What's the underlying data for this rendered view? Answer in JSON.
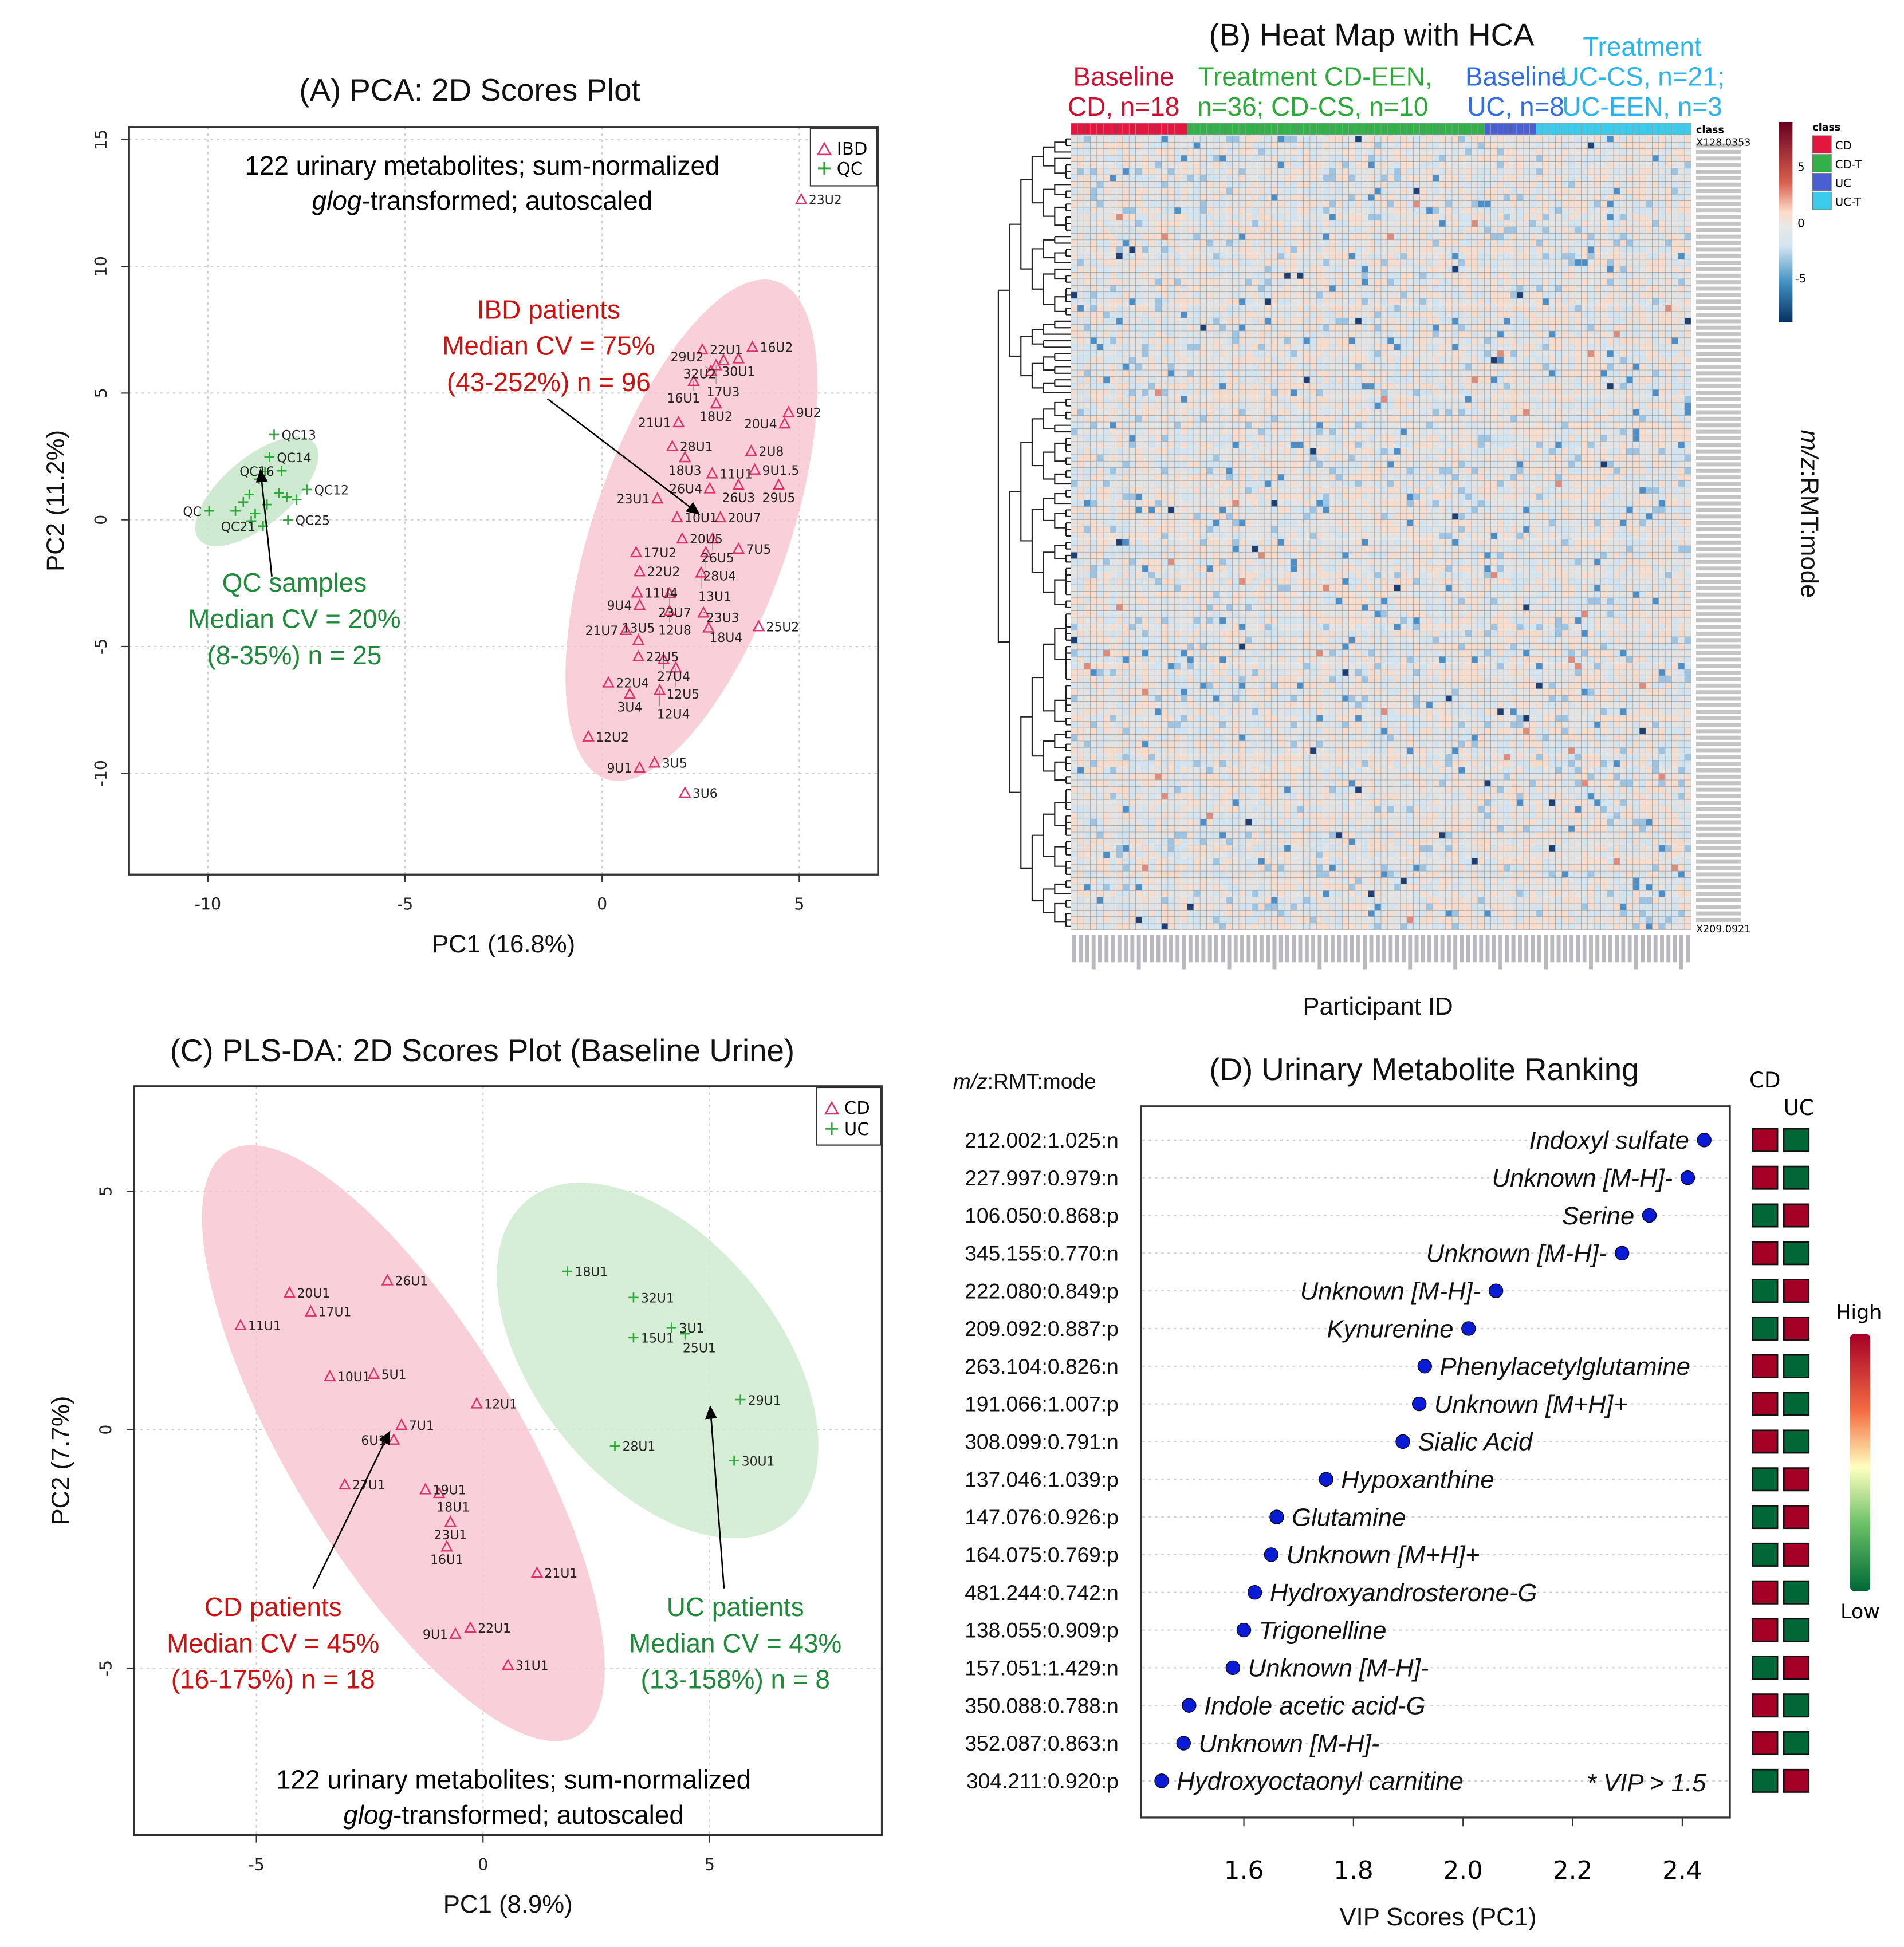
{
  "colors": {
    "ibd": "#e0306a",
    "qc": "#2eaa3a",
    "cd_text": "#cc1111",
    "uc_text": "#1f8a3a",
    "ibd_ellipse": "#f5b8c6",
    "qc_ellipse": "#bfe3c2",
    "high": "#a50026",
    "low": "#006837",
    "vip_dot": "#0a1bd6"
  },
  "panelA": {
    "title": "(A)  PCA: 2D Scores Plot",
    "note_line1": "122 urinary metabolites; sum-normalized",
    "note_line2_italic": "glog",
    "note_line2_rest": "-transformed; autoscaled",
    "ibd_ann": [
      "IBD patients",
      "Median CV = 75%",
      "(43-252%) n = 96"
    ],
    "qc_ann": [
      "QC samples",
      "Median CV = 20%",
      "(8-35%) n = 25"
    ],
    "legend": [
      "IBD",
      "QC"
    ]
  },
  "panelB": {
    "title": "(B)  Heat Map with HCA",
    "groups": [
      {
        "line1": "Baseline",
        "line2": "CD, n=18",
        "color": "#cc1133"
      },
      {
        "line1": "Treatment  CD-EEN,",
        "line2": "n=36; CD-CS, n=10",
        "color": "#2eaa3a"
      },
      {
        "line1": "Baseline",
        "line2": "UC, n=8",
        "color": "#2f6fe0"
      },
      {
        "line1": "Treatment",
        "line2": "UC-CS, n=21;",
        "line3": "UC-EEN, n=3",
        "color": "#2cb5ea"
      }
    ],
    "xlabel": "Participant ID",
    "ylabel": "m/z:RMT:mode",
    "first_row_label": "X128.0353",
    "last_row_label": "X209.0921",
    "class_title": "class",
    "classes": [
      {
        "name": "CD",
        "color": "#e3163f",
        "n": 18
      },
      {
        "name": "CD-T",
        "color": "#33b04a",
        "n": 46
      },
      {
        "name": "UC",
        "color": "#4a5fd0",
        "n": 8
      },
      {
        "name": "UC-T",
        "color": "#3ccbea",
        "n": 24
      }
    ],
    "colorbar_ticks": [
      "5",
      "0",
      "-5"
    ]
  },
  "panelC": {
    "title": "(C)  PLS-DA: 2D Scores Plot (Baseline Urine)",
    "note_line1": "122 urinary metabolites; sum-normalized",
    "note_line2_italic": "glog",
    "note_line2_rest": "-transformed; autoscaled",
    "cd_ann": [
      "CD patients",
      "Median CV = 45%",
      "(16-175%) n = 18"
    ],
    "uc_ann": [
      "UC patients",
      "Median CV = 43%",
      "(13-158%) n = 8"
    ],
    "legend": [
      "CD",
      "UC"
    ]
  },
  "panelD": {
    "title": "(D)  Urinary Metabolite Ranking",
    "mz_header": "m/z:RMT:mode",
    "footnote": "* VIP > 1.5",
    "col_headers": [
      "CD",
      "UC"
    ],
    "scale_high": "High",
    "scale_low": "Low"
  },
  "chart_data": [
    {
      "type": "scatter",
      "title": "(A)  PCA: 2D Scores Plot",
      "xlabel": "PC1 (16.8%)",
      "ylabel": "PC2 (11.2%)",
      "xlim": [
        -12,
        7
      ],
      "ylim": [
        -14,
        15.5
      ],
      "xticks": [
        -10,
        -5,
        0,
        5
      ],
      "yticks": [
        -10,
        -5,
        0,
        5,
        10,
        15
      ],
      "grid": true,
      "legend": "top-right",
      "series": [
        {
          "name": "IBD",
          "marker": "triangle",
          "points": [
            {
              "label": "23U2",
              "x": 5.05,
              "y": 12.65
            },
            {
              "label": "22U1",
              "x": 2.54,
              "y": 6.72
            },
            {
              "label": "16U2",
              "x": 3.81,
              "y": 6.82
            },
            {
              "label": "30U1",
              "x": 3.46,
              "y": 6.37
            },
            {
              "label": "32U2",
              "x": 3.08,
              "y": 6.3
            },
            {
              "label": "17U3",
              "x": 2.89,
              "y": 6.1
            },
            {
              "label": "29U2",
              "x": 2.76,
              "y": 5.88
            },
            {
              "label": "16U1",
              "x": 2.32,
              "y": 5.48
            },
            {
              "label": "18U2",
              "x": 2.89,
              "y": 4.59
            },
            {
              "label": "9U2",
              "x": 4.73,
              "y": 4.25
            },
            {
              "label": "20U4",
              "x": 4.63,
              "y": 3.8
            },
            {
              "label": "21U1",
              "x": 1.94,
              "y": 3.85
            },
            {
              "label": "28U1",
              "x": 1.78,
              "y": 2.91
            },
            {
              "label": "18U3",
              "x": 2.1,
              "y": 2.47
            },
            {
              "label": "2U8",
              "x": 3.78,
              "y": 2.72
            },
            {
              "label": "11U1",
              "x": 2.79,
              "y": 1.83
            },
            {
              "label": "9U1.5",
              "x": 3.87,
              "y": 1.98
            },
            {
              "label": "26U3",
              "x": 3.46,
              "y": 1.38
            },
            {
              "label": "29U5",
              "x": 4.48,
              "y": 1.38
            },
            {
              "label": "26U4",
              "x": 2.73,
              "y": 1.24
            },
            {
              "label": "23U1",
              "x": 1.4,
              "y": 0.84
            },
            {
              "label": "10U1",
              "x": 1.9,
              "y": 0.1
            },
            {
              "label": "20U7",
              "x": 3.0,
              "y": 0.1
            },
            {
              "label": "20U5",
              "x": 2.03,
              "y": -0.74
            },
            {
              "label": "26U5",
              "x": 2.8,
              "y": -0.74
            },
            {
              "label": "7U5",
              "x": 3.46,
              "y": -1.14
            },
            {
              "label": "28U4",
              "x": 2.63,
              "y": -1.28
            },
            {
              "label": "17U2",
              "x": 0.86,
              "y": -1.28
            },
            {
              "label": "22U2",
              "x": 0.95,
              "y": -2.03
            },
            {
              "label": "13U1",
              "x": 2.51,
              "y": -2.08
            },
            {
              "label": "11U4",
              "x": 0.89,
              "y": -2.87
            },
            {
              "label": "23U7",
              "x": 1.71,
              "y": -2.9
            },
            {
              "label": "9U4",
              "x": 0.95,
              "y": -3.36
            },
            {
              "label": "12U8",
              "x": 1.71,
              "y": -3.6
            },
            {
              "label": "23U3",
              "x": 2.57,
              "y": -3.66
            },
            {
              "label": "18U4",
              "x": 2.7,
              "y": -4.25
            },
            {
              "label": "25U2",
              "x": 3.97,
              "y": -4.2
            },
            {
              "label": "21U7",
              "x": 0.6,
              "y": -4.35
            },
            {
              "label": "13U5",
              "x": 0.92,
              "y": -4.74
            },
            {
              "label": "22U5",
              "x": 0.92,
              "y": -5.39
            },
            {
              "label": "27U4",
              "x": 1.56,
              "y": -5.5
            },
            {
              "label": "12U5",
              "x": 1.87,
              "y": -5.83
            },
            {
              "label": "22U4",
              "x": 0.16,
              "y": -6.42
            },
            {
              "label": "3U4",
              "x": 0.7,
              "y": -6.87
            },
            {
              "label": "12U4",
              "x": 1.46,
              "y": -6.72
            },
            {
              "label": "12U2",
              "x": -0.35,
              "y": -8.55
            },
            {
              "label": "3U5",
              "x": 1.33,
              "y": -9.58
            },
            {
              "label": "9U1",
              "x": 0.95,
              "y": -9.78
            },
            {
              "label": "3U6",
              "x": 2.1,
              "y": -10.77
            }
          ]
        },
        {
          "name": "QC",
          "marker": "plus",
          "points": [
            {
              "label": "QC13",
              "x": -8.32,
              "y": 3.36
            },
            {
              "label": "QC14",
              "x": -8.44,
              "y": 2.47
            },
            {
              "label": "QC16",
              "x": -8.13,
              "y": 1.93
            },
            {
              "label": "QC12",
              "x": -7.49,
              "y": 1.19
            },
            {
              "label": "QC25",
              "x": -7.97,
              "y": 0.0
            },
            {
              "label": "QC21",
              "x": -8.6,
              "y": -0.25
            },
            {
              "label": "QC",
              "x": -9.97,
              "y": 0.35
            },
            {
              "label": "",
              "x": -9.1,
              "y": 0.7
            },
            {
              "label": "",
              "x": -8.95,
              "y": 1.0
            },
            {
              "label": "",
              "x": -8.8,
              "y": 0.25
            },
            {
              "label": "",
              "x": -8.5,
              "y": 0.6
            },
            {
              "label": "",
              "x": -9.3,
              "y": 0.35
            },
            {
              "label": "",
              "x": -8.7,
              "y": 1.6
            },
            {
              "label": "",
              "x": -8.55,
              "y": 1.9
            },
            {
              "label": "",
              "x": -8.0,
              "y": 0.9
            },
            {
              "label": "",
              "x": -7.75,
              "y": 0.8
            },
            {
              "label": "",
              "x": -8.2,
              "y": 1.05
            },
            {
              "label": "",
              "x": -8.9,
              "y": -0.05
            }
          ]
        }
      ]
    },
    {
      "type": "heatmap",
      "title": "(B)  Heat Map with HCA",
      "xlabel": "Participant ID",
      "ylabel": "m/z:RMT:mode",
      "n_rows": 122,
      "n_cols": 96,
      "color_range": [
        -9,
        9
      ]
    },
    {
      "type": "scatter",
      "title": "(C)  PLS-DA: 2D Scores Plot (Baseline Urine)",
      "xlabel": "PC1 (8.9%)",
      "ylabel": "PC2 (7.7%)",
      "xlim": [
        -7.7,
        8.8
      ],
      "ylim": [
        -8.5,
        7.2
      ],
      "xticks": [
        -5,
        0,
        5
      ],
      "yticks": [
        -5,
        0,
        5
      ],
      "grid": true,
      "legend": "top-right",
      "series": [
        {
          "name": "CD",
          "marker": "triangle",
          "points": [
            {
              "label": "26U1",
              "x": -2.11,
              "y": 3.13
            },
            {
              "label": "20U1",
              "x": -4.27,
              "y": 2.87
            },
            {
              "label": "17U1",
              "x": -3.8,
              "y": 2.48
            },
            {
              "label": "11U1",
              "x": -5.35,
              "y": 2.19
            },
            {
              "label": "10U1",
              "x": -3.38,
              "y": 1.12
            },
            {
              "label": "5U1",
              "x": -2.41,
              "y": 1.17
            },
            {
              "label": "12U1",
              "x": -0.14,
              "y": 0.55
            },
            {
              "label": "7U1",
              "x": -1.8,
              "y": 0.1
            },
            {
              "label": "6U1",
              "x": -1.97,
              "y": -0.21
            },
            {
              "label": "27U1",
              "x": -3.05,
              "y": -1.15
            },
            {
              "label": "19U1",
              "x": -1.27,
              "y": -1.25
            },
            {
              "label": "18U1",
              "x": -0.97,
              "y": -1.33
            },
            {
              "label": "23U1",
              "x": -0.72,
              "y": -1.93
            },
            {
              "label": "16U1",
              "x": -0.8,
              "y": -2.45
            },
            {
              "label": "21U1",
              "x": 1.19,
              "y": -3.0
            },
            {
              "label": "22U1",
              "x": -0.28,
              "y": -4.15
            },
            {
              "label": "9U1",
              "x": -0.61,
              "y": -4.28
            },
            {
              "label": "31U1",
              "x": 0.55,
              "y": -4.93
            }
          ]
        },
        {
          "name": "UC",
          "marker": "plus",
          "points": [
            {
              "label": "18U1",
              "x": 1.86,
              "y": 3.32
            },
            {
              "label": "32U1",
              "x": 3.32,
              "y": 2.77
            },
            {
              "label": "3U1",
              "x": 4.16,
              "y": 2.14
            },
            {
              "label": "15U1",
              "x": 3.32,
              "y": 1.93
            },
            {
              "label": "25U1",
              "x": 4.46,
              "y": 2.01
            },
            {
              "label": "29U1",
              "x": 5.68,
              "y": 0.63
            },
            {
              "label": "28U1",
              "x": 2.91,
              "y": -0.34
            },
            {
              "label": "30U1",
              "x": 5.54,
              "y": -0.65
            }
          ]
        }
      ]
    },
    {
      "type": "dot",
      "title": "(D)  Urinary Metabolite Ranking",
      "xlabel": "VIP Scores (PC1)",
      "xlim": [
        1.42,
        2.48
      ],
      "xticks": [
        1.6,
        1.8,
        2.0,
        2.2,
        2.4
      ],
      "rows": [
        {
          "mz": "212.002:1.025:n",
          "name": "Indoxyl sulfate",
          "vip": 2.44,
          "cd": "high",
          "uc": "low"
        },
        {
          "mz": "227.997:0.979:n",
          "name": "Unknown [M-H]-",
          "vip": 2.41,
          "cd": "high",
          "uc": "low"
        },
        {
          "mz": "106.050:0.868:p",
          "name": "Serine",
          "vip": 2.34,
          "cd": "low",
          "uc": "high"
        },
        {
          "mz": "345.155:0.770:n",
          "name": "Unknown [M-H]-",
          "vip": 2.29,
          "cd": "high",
          "uc": "low"
        },
        {
          "mz": "222.080:0.849:p",
          "name": "Unknown [M-H]-",
          "vip": 2.06,
          "cd": "low",
          "uc": "high"
        },
        {
          "mz": "209.092:0.887:p",
          "name": "Kynurenine",
          "vip": 2.01,
          "cd": "low",
          "uc": "high"
        },
        {
          "mz": "263.104:0.826:n",
          "name": "Phenylacetylglutamine",
          "vip": 1.93,
          "cd": "high",
          "uc": "low"
        },
        {
          "mz": "191.066:1.007:p",
          "name": "Unknown [M+H]+",
          "vip": 1.92,
          "cd": "high",
          "uc": "low"
        },
        {
          "mz": "308.099:0.791:n",
          "name": "Sialic Acid",
          "vip": 1.89,
          "cd": "high",
          "uc": "low"
        },
        {
          "mz": "137.046:1.039:p",
          "name": "Hypoxanthine",
          "vip": 1.75,
          "cd": "low",
          "uc": "high"
        },
        {
          "mz": "147.076:0.926:p",
          "name": "Glutamine",
          "vip": 1.66,
          "cd": "low",
          "uc": "high"
        },
        {
          "mz": "164.075:0.769:p",
          "name": "Unknown [M+H]+",
          "vip": 1.65,
          "cd": "low",
          "uc": "high"
        },
        {
          "mz": "481.244:0.742:n",
          "name": "Hydroxyandrosterone-G",
          "vip": 1.62,
          "cd": "high",
          "uc": "low"
        },
        {
          "mz": "138.055:0.909:p",
          "name": "Trigonelline",
          "vip": 1.6,
          "cd": "high",
          "uc": "low"
        },
        {
          "mz": "157.051:1.429:n",
          "name": "Unknown [M-H]-",
          "vip": 1.58,
          "cd": "low",
          "uc": "high"
        },
        {
          "mz": "350.088:0.788:n",
          "name": "Indole acetic acid-G",
          "vip": 1.5,
          "cd": "high",
          "uc": "low"
        },
        {
          "mz": "352.087:0.863:n",
          "name": "Unknown [M-H]-",
          "vip": 1.49,
          "cd": "high",
          "uc": "low"
        },
        {
          "mz": "304.211:0.920:p",
          "name": "Hydroxyoctaonyl carnitine",
          "vip": 1.45,
          "cd": "low",
          "uc": "high"
        }
      ]
    }
  ]
}
